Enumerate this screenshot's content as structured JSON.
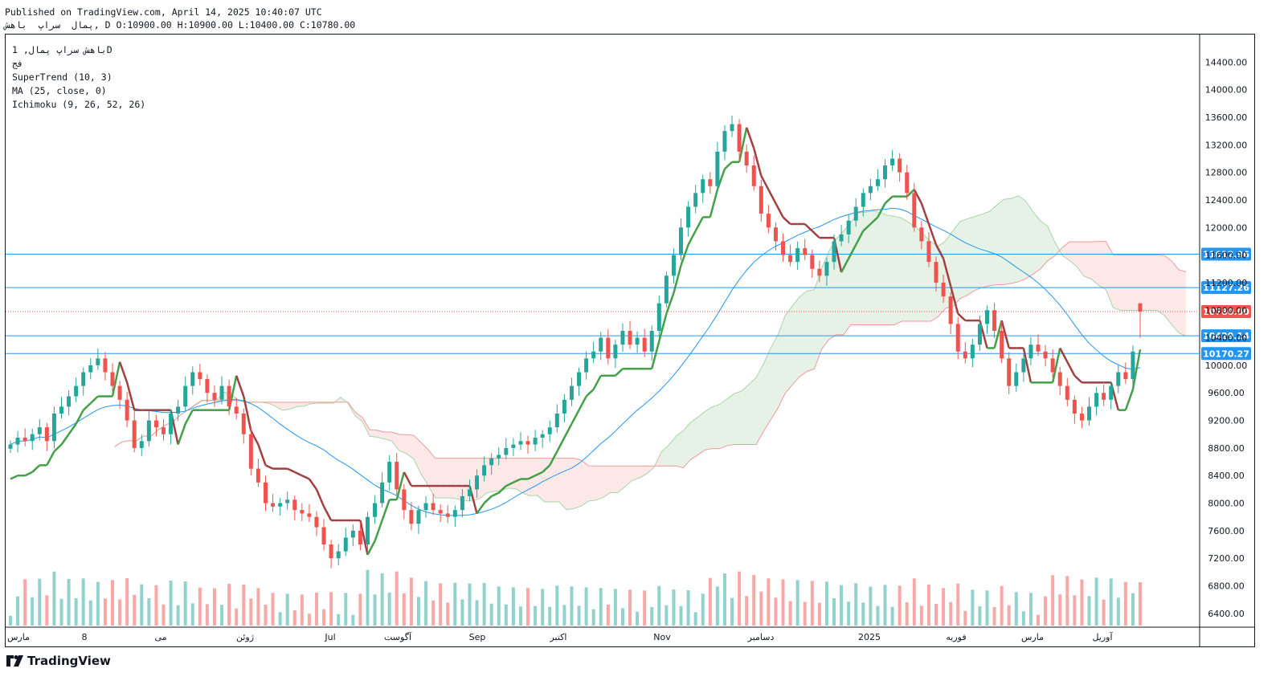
{
  "header": {
    "published": "Published on TradingView.com, April 14, 2025 10:40:07 UTC",
    "ohlc": "پمال  سراپ  باهش, D O:10900.00 H:10900.00 L:10400.00 C:10780.00"
  },
  "legend": {
    "symbol": "باهش سراپ پمال, 1D",
    "exchange": "فج",
    "supertrend": "SuperTrend (10, 3)",
    "ma": "MA (25, close, 0)",
    "ichimoku": "Ichimoku (9, 26, 52, 26)"
  },
  "brand": {
    "name": "TradingView"
  },
  "colors": {
    "up": "#26a69a",
    "down": "#ef5350",
    "st_up": "#43a047",
    "st_down": "#a14040",
    "ma": "#2196f3",
    "hline": "#2196f3",
    "cloud_up": "#43a04722",
    "cloud_down": "#ef535022"
  },
  "chart_data": {
    "type": "candlestick",
    "title": "",
    "ylim": [
      6200,
      14800
    ],
    "y_ticks": [
      "14400.00",
      "14000.00",
      "13600.00",
      "13200.00",
      "12800.00",
      "12400.00",
      "12000.00",
      "11600.00",
      "11200.00",
      "10800.00",
      "10400.00",
      "10000.00",
      "9600.00",
      "9200.00",
      "8800.00",
      "8400.00",
      "8000.00",
      "7600.00",
      "7200.00",
      "6800.00",
      "6400.00"
    ],
    "x_labels": [
      "مارس",
      "8",
      "می",
      "ژوئن",
      "Jul",
      "آگوست",
      "Sep",
      "اکتبر",
      "Nov",
      "دسامبر",
      "2025",
      "فوریه",
      "مارس",
      "آوریل"
    ],
    "horizontal_levels": [
      {
        "label": "11612.96",
        "value": 11612.96
      },
      {
        "label": "11127.26",
        "value": 11127.26
      },
      {
        "label": "10429.14",
        "value": 10429.14
      },
      {
        "label": "10170.27",
        "value": 10170.27
      }
    ],
    "last_price": {
      "label": "10780.00",
      "value": 10780,
      "color": "#ef5350"
    },
    "ohlc_last": {
      "open": 10900,
      "high": 10900,
      "low": 10400,
      "close": 10780
    },
    "candles_close": [
      8850,
      8950,
      8900,
      9000,
      9100,
      8900,
      9300,
      9400,
      9550,
      9700,
      9900,
      10000,
      10100,
      9900,
      9700,
      9500,
      9200,
      8800,
      8900,
      9200,
      9100,
      9000,
      9300,
      9400,
      9700,
      9900,
      9800,
      9600,
      9500,
      9700,
      9400,
      9300,
      9000,
      8500,
      8300,
      8000,
      7950,
      8000,
      8050,
      7900,
      7850,
      7800,
      7650,
      7400,
      7200,
      7300,
      7500,
      7600,
      7400,
      7800,
      8000,
      8300,
      8600,
      8200,
      7900,
      7700,
      7900,
      8000,
      7900,
      7850,
      7800,
      7900,
      8100,
      8200,
      8400,
      8550,
      8650,
      8700,
      8800,
      8850,
      8900,
      8850,
      8950,
      9000,
      9100,
      9300,
      9500,
      9700,
      9900,
      10100,
      10200,
      10400,
      10100,
      10300,
      10500,
      10300,
      10400,
      10200,
      10500,
      10900,
      11300,
      11600,
      12000,
      12300,
      12500,
      12700,
      12600,
      13100,
      13400,
      13500,
      13100,
      12900,
      12600,
      12200,
      12000,
      11800,
      11600,
      11500,
      11700,
      11600,
      11400,
      11300,
      11500,
      11800,
      11900,
      12100,
      12300,
      12500,
      12600,
      12700,
      12900,
      13000,
      12800,
      12500,
      12000,
      11800,
      11500,
      11200,
      11000,
      10600,
      10200,
      10100,
      10300,
      10600,
      10800,
      10500,
      10100,
      9700,
      9900,
      10100,
      10300,
      10200,
      10100,
      9900,
      9700,
      9500,
      9300,
      9200,
      9400,
      9600,
      9500,
      9700,
      9900,
      9800,
      10200,
      10780
    ],
    "supertrend": [
      {
        "from": 0,
        "to": 30,
        "trend": "mixed"
      }
    ],
    "ma_length": 25
  }
}
